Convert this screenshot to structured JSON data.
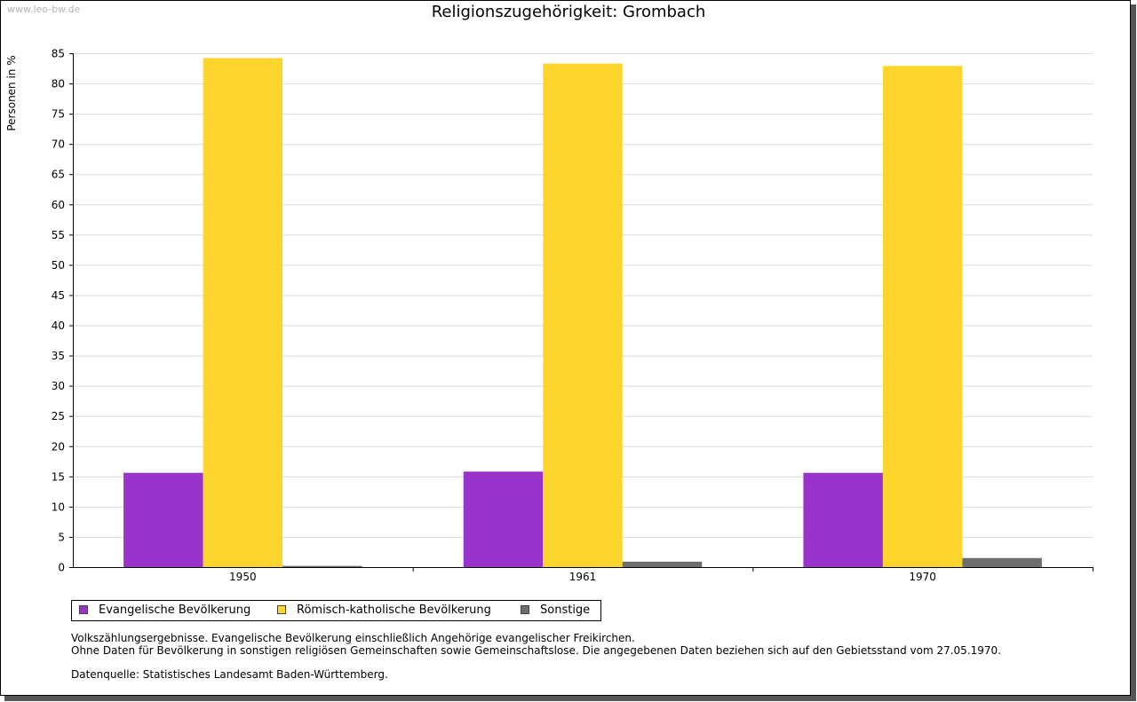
{
  "watermark": "www.leo-bw.de",
  "chart_data": {
    "type": "bar",
    "title": "Religionszugehörigkeit: Grombach",
    "xlabel": "",
    "ylabel": "Personen in %",
    "ylim": [
      0,
      85
    ],
    "yticks": [
      0,
      5,
      10,
      15,
      20,
      25,
      30,
      35,
      40,
      45,
      50,
      55,
      60,
      65,
      70,
      75,
      80,
      85
    ],
    "grid": true,
    "legend_position": "bottom-left",
    "categories": [
      "1950",
      "1961",
      "1970"
    ],
    "series": [
      {
        "name": "Evangelische Bevölkerung",
        "color": "#9933cc",
        "values": [
          15.6,
          15.8,
          15.6
        ]
      },
      {
        "name": "Römisch-katholische Bevölkerung",
        "color": "#fcd52d",
        "values": [
          84.2,
          83.3,
          82.9
        ]
      },
      {
        "name": "Sonstige",
        "color": "#6e6e6e",
        "values": [
          0.2,
          0.9,
          1.5
        ]
      }
    ]
  },
  "notes": {
    "line1": "Volkszählungsergebnisse. Evangelische Bevölkerung einschließlich Angehörige evangelischer Freikirchen.",
    "line2": "Ohne Daten für Bevölkerung in sonstigen religiösen Gemeinschaften sowie Gemeinschaftslose. Die angegebenen Daten beziehen sich auf den Gebietsstand vom 27.05.1970.",
    "source": "Datenquelle: Statistisches Landesamt Baden-Württemberg."
  }
}
